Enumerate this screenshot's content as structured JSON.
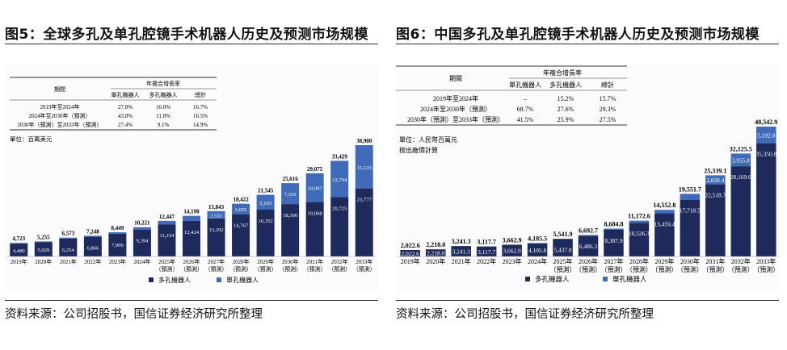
{
  "figures": [
    {
      "id": "left",
      "title": "图5：全球多孔及单孔腔镜手术机器人历史及预测市场规模",
      "source": "资料来源：公司招股书，国信证券经济研究所整理",
      "cagr_table": {
        "period_header": "期間",
        "group_header": "年複合增長率",
        "col_headers": [
          "單孔機器人",
          "多孔機器人",
          "總計"
        ],
        "rows": [
          {
            "period": "2019年至2024年",
            "values": [
              "27.8%",
              "16.0%",
              "16.7%"
            ]
          },
          {
            "period": "2024年至2030年（預測）",
            "values": [
              "43.8%",
              "11.8%",
              "16.5%"
            ]
          },
          {
            "period": "2030年（預測）至2033年（預測）",
            "values": [
              "27.4%",
              "9.1%",
              "14.9%"
            ]
          }
        ]
      },
      "unit_text": [
        "單位：百萬美元"
      ],
      "label_decimals": 0,
      "chart_data": {
        "type": "bar",
        "stacked": true,
        "categories": [
          "2019年",
          "2020年",
          "2021年",
          "2022年",
          "2023年",
          "2024年",
          "2025年 （預測）",
          "2026年 （預測）",
          "2027年 （預測）",
          "2028年 （預測）",
          "2029年 （預測）",
          "2030年 （預測）",
          "2031年 （預測）",
          "2032年 （預測）",
          "2033年 （預測）"
        ],
        "series": [
          {
            "name": "多孔機器人",
            "color": "#1f2a5c",
            "values": [
              4480,
              5029,
              6254,
              6866,
              7909,
              9394,
              11234,
              12424,
              13292,
              14767,
              16352,
              18300,
              19068,
              20725,
              23777
            ]
          },
          {
            "name": "單孔機器人",
            "color": "#3f6bb8",
            "values": [
              243,
              226,
              319,
              382,
              540,
              827,
              1213,
              1766,
              2551,
              3655,
              5193,
              7316,
              10007,
              12704,
              15123
            ]
          }
        ],
        "totals": [
          4723,
          5255,
          6573,
          7248,
          8449,
          10221,
          12447,
          14190,
          15843,
          18422,
          21545,
          25616,
          29075,
          33429,
          38900
        ],
        "small_segment_labels": false,
        "ylim": [
          0,
          38900
        ],
        "legend": [
          "多孔機器人",
          "單孔機器人"
        ],
        "legend_position": "bottom",
        "grid": false
      }
    },
    {
      "id": "right",
      "title": "图6：中国多孔及单孔腔镜手术机器人历史及预测市场规模",
      "source": "资料来源：公司招股书，国信证券经济研究所整理",
      "cagr_table": {
        "period_header": "期間",
        "group_header": "年複合增長率",
        "col_headers": [
          "單孔機器人",
          "多孔機器人",
          "總計"
        ],
        "rows": [
          {
            "period": "2019年至2024年",
            "values": [
              "–",
              "15.2%",
              "15.7%"
            ]
          },
          {
            "period": "2024年至2030年（預測）",
            "values": [
              "68.7%",
              "27.6%",
              "29.3%"
            ]
          },
          {
            "period": "2030年（預測）至2033年（預測）",
            "values": [
              "41.5%",
              "25.9%",
              "27.5%"
            ]
          }
        ]
      },
      "unit_text": [
        "單位：人民幣百萬元",
        "按出廠價計算"
      ],
      "label_decimals": 1,
      "chart_data": {
        "type": "bar",
        "stacked": true,
        "categories": [
          "2019年",
          "2020年",
          "2021年",
          "2022年",
          "2023年",
          "2024年",
          "2025年 （預測）",
          "2026年 （預測）",
          "2027年 （預測）",
          "2028年 （預測）",
          "2029年 （預測）",
          "2030年 （預測）",
          "2031年 （預測）",
          "2032年 （預測）",
          "2033年 （預測）"
        ],
        "series": [
          {
            "name": "多孔機器人",
            "color": "#1f2a5c",
            "values": [
              2022.6,
              2218.0,
              3241.3,
              3117.7,
              3662.9,
              4105.8,
              5437.8,
              6486.3,
              8307.9,
              10526.3,
              13459.4,
              17718.5,
              22518.7,
              28169.6,
              35350.8
            ]
          },
          {
            "name": "單孔機器人",
            "color": "#3f6bb8",
            "values": [
              0,
              0,
              0,
              0,
              0,
              79.7,
              104.1,
              206.4,
              376.9,
              646.3,
              1093.4,
              1833.3,
              2820.4,
              3955.8,
              5192.0
            ]
          }
        ],
        "totals": [
          2022.6,
          2218.0,
          3241.3,
          3117.7,
          3662.9,
          4185.5,
          5541.9,
          6692.7,
          8684.8,
          11172.6,
          14552.8,
          19551.7,
          25339.1,
          32125.5,
          40542.9
        ],
        "small_segment_labels": false,
        "ylim": [
          0,
          40542.9
        ],
        "legend": [
          "多孔機器人",
          "單孔機器人"
        ],
        "legend_position": "bottom",
        "grid": false
      }
    }
  ]
}
